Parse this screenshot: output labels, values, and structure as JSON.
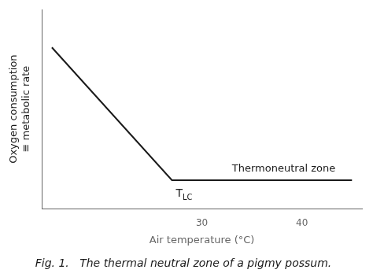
{
  "chart_data": {
    "type": "line",
    "title": "Fig. 1.   The thermal neutral zone of a pigmy possum.",
    "xlabel": "Air temperature (°C)",
    "ylabel": [
      "Oxygen consumption",
      "≡ metabolic rate"
    ],
    "x": [
      15,
      27,
      45
    ],
    "values": [
      0.85,
      0.15,
      0.15
    ],
    "color": "#1a1a1a",
    "marker": "none",
    "line_style": "solid",
    "xlim": [
      14,
      46
    ],
    "ylim": [
      0.0,
      1.05
    ],
    "xticks": [
      30,
      40
    ],
    "yticks": [],
    "tick_labels": "x",
    "grid": false,
    "annotations": [
      {
        "text": "T",
        "subscript": "LC",
        "x": 27,
        "y": 0.15
      },
      {
        "text": "Thermoneutral zone",
        "x": 33,
        "y": 0.15
      }
    ]
  }
}
